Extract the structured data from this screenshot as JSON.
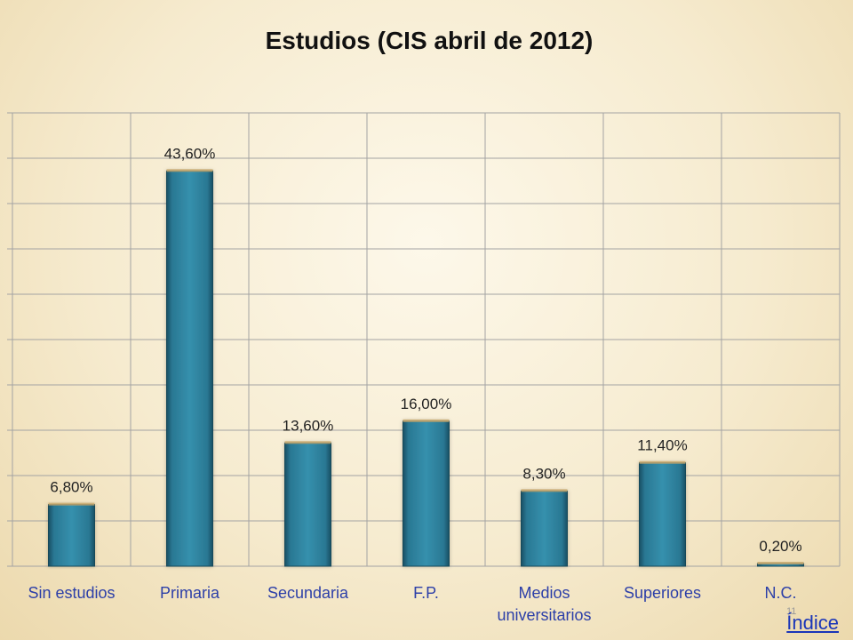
{
  "chart_data": {
    "type": "bar",
    "title": "Estudios (CIS abril de 2012)",
    "categories": [
      [
        "Sin estudios"
      ],
      [
        "Primaria"
      ],
      [
        "Secundaria"
      ],
      [
        "F.P."
      ],
      [
        "Medios",
        "universitarios"
      ],
      [
        "Superiores"
      ],
      [
        "N.C."
      ]
    ],
    "values": [
      6.8,
      43.6,
      13.6,
      16.0,
      8.3,
      11.4,
      0.2
    ],
    "data_labels": [
      "6,80%",
      "43,60%",
      "13,60%",
      "16,00%",
      "8,30%",
      "11,40%",
      "0,20%"
    ],
    "ylim": [
      0,
      50
    ],
    "grid": true,
    "legend": "none",
    "bar_color": "#2f86a3"
  },
  "footer": {
    "index_label": "Índice",
    "slide_number": "11"
  }
}
